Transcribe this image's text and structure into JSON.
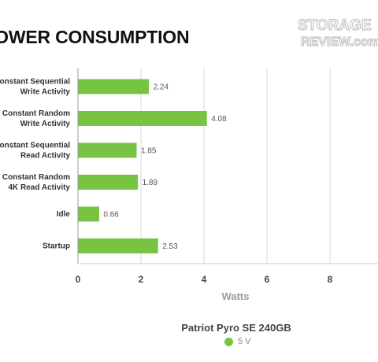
{
  "chart_data": {
    "type": "bar",
    "orientation": "horizontal",
    "title": "POWER CONSUMPTION",
    "categories": [
      [
        "Constant Sequential",
        "Write Activity"
      ],
      [
        "Constant Random",
        "Write Activity"
      ],
      [
        "Constant Sequential",
        "Read Activity"
      ],
      [
        "Constant Random",
        "4K Read Activity"
      ],
      [
        "Idle"
      ],
      [
        "Startup"
      ]
    ],
    "series": [
      {
        "name": "5 V",
        "color": "#76c442",
        "values": [
          2.24,
          4.08,
          1.85,
          1.89,
          0.66,
          2.53
        ]
      }
    ],
    "value_labels": [
      "2.24",
      "4.08",
      "1.85",
      "1.89",
      "0.66",
      "2.53"
    ],
    "xlabel": "Watts",
    "ylabel": "",
    "xlim": [
      0,
      10
    ],
    "xticks": [
      0,
      2,
      4,
      6,
      8
    ],
    "xtick_labels": [
      "0",
      "2",
      "4",
      "6",
      "8"
    ],
    "grid": true,
    "legend_title": "Patriot Pyro SE 240GB",
    "legend_position": "bottom"
  },
  "watermark": {
    "line1": "STORAGE",
    "line2": "REVIEW.com"
  }
}
